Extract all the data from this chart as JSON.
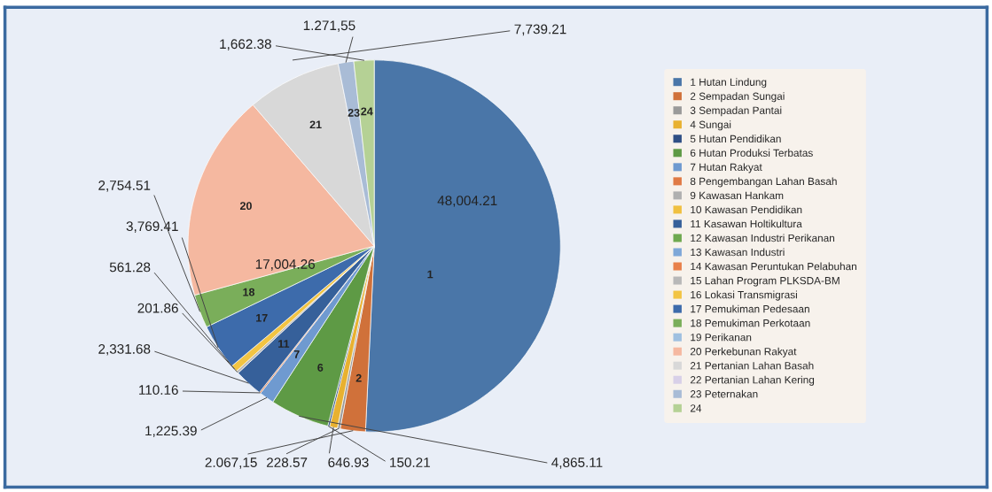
{
  "chart_data": {
    "type": "pie",
    "categories": [
      "1 Hutan Lindung",
      "2 Sempadan Sungai",
      "3 Sempadan Pantai",
      "4 Sungai",
      "5 Hutan Pendidikan",
      "6 Hutan Produksi Terbatas",
      "7 Hutan Rakyat",
      "8 Pengembangan Lahan Basah",
      "9 Kawasan Hankam",
      "10 Kawasan Pendidikan",
      "11 Kasawan Holtikultura",
      "12 Kawasan Industri Perikanan",
      "13 Kawasan Industri",
      "14 Kawasan Peruntukan Pelabuhan",
      "15 Lahan Program PLKSDA-BM",
      "16 Lokasi Transmigrasi",
      "17 Pemukiman Pedesaan",
      "18 Pemukiman Perkotaan",
      "19 Perikanan",
      "20 Perkebunan Rakyat",
      "21 Pertanian Lahan Basah",
      "22 Pertanian Lahan Kering",
      "23 Peternakan",
      "24"
    ],
    "values": [
      48004.21,
      2067.15,
      228.57,
      646.93,
      150.21,
      4865.11,
      1225.39,
      110.16,
      null,
      null,
      2331.68,
      null,
      null,
      null,
      201.86,
      561.28,
      3769.41,
      2754.51,
      null,
      17004.26,
      7739.21,
      null,
      1271.55,
      1662.38
    ],
    "value_labels": [
      "48,004.21",
      "2.067,15",
      "228.57",
      "646.93",
      "150.21",
      "4,865.11",
      "1,225.39",
      "110.16",
      null,
      null,
      "2,331.68",
      null,
      null,
      null,
      "201.86",
      "561.28",
      "3,769.41",
      "2,754.51",
      null,
      "17,004.26",
      "7,739.21",
      null,
      "1.271,55",
      "1,662.38"
    ],
    "colors": [
      "#4a76a8",
      "#d0713a",
      "#9a9a9a",
      "#e8b130",
      "#2f4f85",
      "#5e9a45",
      "#6f9ad0",
      "#e07a45",
      "#b0b0b0",
      "#f0c040",
      "#36609a",
      "#6fa94f",
      "#7fa8d8",
      "#e8804a",
      "#b8b8b8",
      "#f2c443",
      "#3d6bab",
      "#7aae5a",
      "#9fc0e0",
      "#f5b8a0",
      "#d8d8d8",
      "#d8d0e8",
      "#a9bcd6",
      "#b5d195"
    ],
    "annotations": [
      {
        "text": "1",
        "x": "1 Hutan Lindung"
      },
      {
        "text": "2",
        "x": "2 Sempadan Sungai"
      },
      {
        "text": "6",
        "x": "6 Hutan Produksi Terbatas"
      },
      {
        "text": "7",
        "x": "7 Hutan Rakyat"
      },
      {
        "text": "11",
        "x": "11 Kasawan Holtikultura"
      },
      {
        "text": "17",
        "x": "17 Pemukiman Pedesaan"
      },
      {
        "text": "18",
        "x": "18 Pemukiman Perkotaan"
      },
      {
        "text": "20",
        "x": "20 Perkebunan Rakyat"
      },
      {
        "text": "21",
        "x": "21 Pertanian Lahan Basah"
      },
      {
        "text": "23",
        "x": "23 Peternakan"
      },
      {
        "text": "24",
        "x": "24"
      }
    ],
    "legend": "right"
  }
}
